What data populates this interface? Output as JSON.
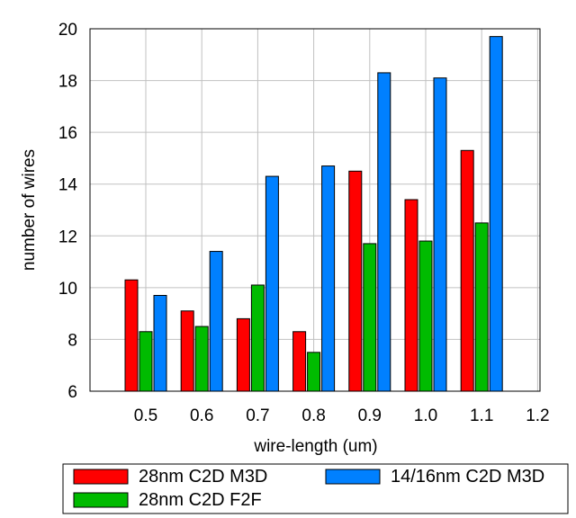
{
  "chart_data": {
    "type": "bar",
    "xlabel": "wire-length (um)",
    "ylabel": "number of wires",
    "categories": [
      "0.5",
      "0.6",
      "0.7",
      "0.8",
      "0.9",
      "1.0",
      "1.1"
    ],
    "x_ticks": [
      "0.5",
      "0.6",
      "0.7",
      "0.8",
      "0.9",
      "1.0",
      "1.1",
      "1.2"
    ],
    "y_ticks": [
      "6",
      "8",
      "10",
      "12",
      "14",
      "16",
      "18",
      "20"
    ],
    "ylim": [
      6,
      20
    ],
    "grid": true,
    "legend_position": "bottom",
    "series": [
      {
        "name": "28nm C2D M3D",
        "color": "#ff0000",
        "values": [
          10.3,
          9.1,
          8.8,
          8.3,
          14.5,
          13.4,
          15.3
        ]
      },
      {
        "name": "28nm C2D F2F",
        "color": "#00bb00",
        "values": [
          8.3,
          8.5,
          10.1,
          7.5,
          11.7,
          11.8,
          12.5
        ]
      },
      {
        "name": "14/16nm C2D M3D",
        "color": "#0080ff",
        "values": [
          9.7,
          11.4,
          14.3,
          14.7,
          18.3,
          18.1,
          19.7
        ]
      }
    ]
  }
}
